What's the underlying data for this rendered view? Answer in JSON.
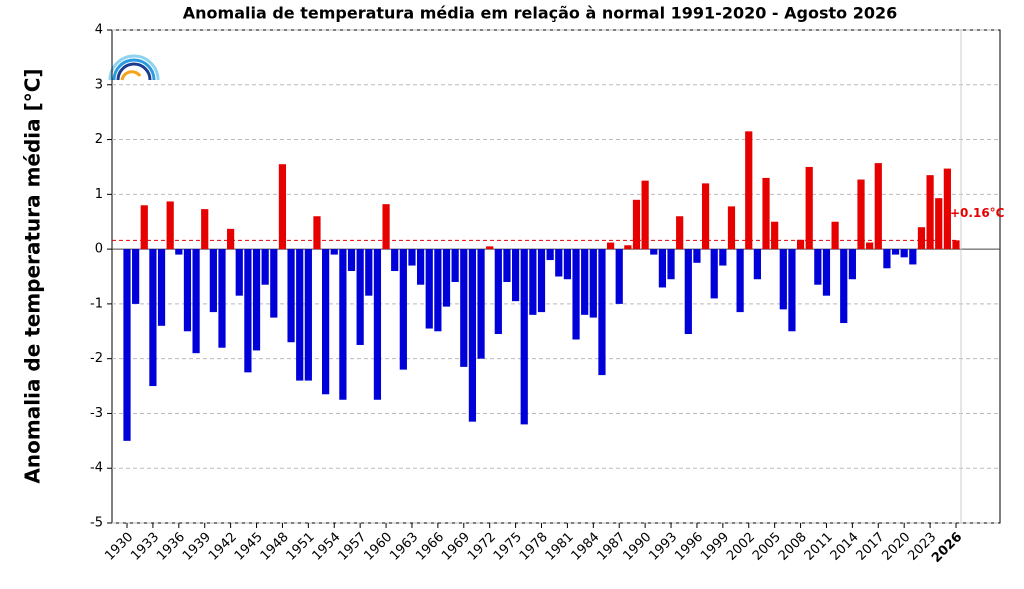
{
  "chart_data": {
    "type": "bar",
    "title": "Anomalia de temperatura média em relação à normal 1991-2020 - Agosto 2026",
    "y_label": "Anomalia de temperatura média [°C]",
    "categories": [
      "1930",
      null,
      null,
      "1933",
      null,
      null,
      "1936",
      null,
      null,
      "1939",
      null,
      null,
      "1942",
      null,
      null,
      "1945",
      null,
      null,
      "1948",
      null,
      null,
      "1951",
      null,
      null,
      "1954",
      null,
      null,
      "1957",
      null,
      null,
      "1960",
      null,
      null,
      "1963",
      null,
      null,
      "1966",
      null,
      null,
      "1969",
      null,
      null,
      "1972",
      null,
      null,
      "1975",
      null,
      null,
      "1978",
      null,
      null,
      "1981",
      null,
      null,
      "1984",
      null,
      null,
      "1987",
      null,
      null,
      "1990",
      null,
      null,
      "1993",
      null,
      null,
      "1996",
      null,
      null,
      "1999",
      null,
      null,
      "2002",
      null,
      null,
      "2005",
      null,
      null,
      "2008",
      null,
      null,
      "2011",
      null,
      null,
      "2014",
      null,
      null,
      "2017",
      null,
      null,
      "2020",
      null,
      null,
      "2023",
      null,
      null,
      "2026"
    ],
    "values": [
      -3.5,
      -1.0,
      0.8,
      -2.5,
      -1.4,
      0.87,
      -0.1,
      -1.5,
      -1.9,
      0.73,
      -1.15,
      -1.8,
      0.37,
      -0.85,
      -2.25,
      -1.85,
      -0.65,
      -1.25,
      1.55,
      -1.7,
      -2.4,
      -2.4,
      0.6,
      -2.65,
      -0.1,
      -2.75,
      -0.4,
      -1.75,
      -0.85,
      -2.75,
      0.82,
      -0.4,
      -2.2,
      -0.3,
      -0.65,
      -1.45,
      -1.5,
      -1.05,
      -0.6,
      -2.15,
      -3.15,
      -2.0,
      0.05,
      -1.55,
      -0.6,
      -0.95,
      -3.2,
      -1.2,
      -1.15,
      -0.2,
      -0.5,
      -0.55,
      -1.65,
      -1.2,
      -1.25,
      -2.3,
      0.12,
      -1.0,
      0.07,
      0.9,
      1.25,
      -0.1,
      -0.7,
      -0.55,
      0.6,
      -1.55,
      -0.25,
      1.2,
      -0.9,
      -0.3,
      0.78,
      -1.15,
      2.15,
      -0.55,
      1.3,
      0.5,
      -1.1,
      -1.5,
      0.17,
      1.5,
      -0.65,
      -0.85,
      0.5,
      -1.35,
      -0.55,
      1.27,
      0.12,
      1.57,
      -0.35,
      -0.1,
      -0.15,
      -0.28,
      0.4,
      1.35,
      0.93,
      1.47,
      0.16
    ],
    "positive_color": "#e60000",
    "negative_color": "#0000d8",
    "annotation": {
      "text": "+0.16°C",
      "value": 0.16
    },
    "ylim": [
      -5,
      4
    ],
    "yticks": [
      -5,
      -4,
      -3,
      -2,
      -1,
      0,
      1,
      2,
      3,
      4
    ],
    "grid": true
  }
}
